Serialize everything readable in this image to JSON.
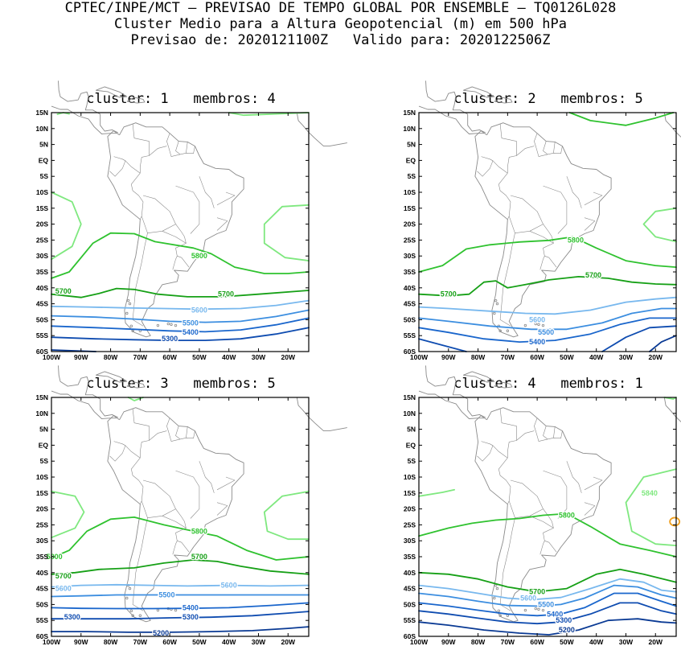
{
  "header": {
    "line1": "CPTEC/INPE/MCT – PREVISAO DE TEMPO GLOBAL POR ENSEMBLE – TQ0126L028",
    "line2": "Cluster Medio para a Altura Geopotencial (m) em 500 hPa",
    "line3": "Previsao de: 2020121100Z   Valido para: 2020122506Z"
  },
  "axes": {
    "lat_labels": [
      "15N",
      "10N",
      "5N",
      "EQ",
      "5S",
      "10S",
      "15S",
      "20S",
      "25S",
      "30S",
      "35S",
      "40S",
      "45S",
      "50S",
      "55S",
      "60S"
    ],
    "lon_labels": [
      "100W",
      "90W",
      "80W",
      "70W",
      "60W",
      "50W",
      "40W",
      "30W",
      "20W"
    ]
  },
  "colors": {
    "c5840": "#7fe87f",
    "c5800": "#2fc22f",
    "c5700": "#16a016",
    "c5600": "#78b8ee",
    "c5500": "#3c8ee0",
    "c5400": "#1a66cc",
    "c5300": "#0f4cb0",
    "c5200": "#0a3a94",
    "warm": "#f0a020",
    "coast": "#8a8a8a"
  },
  "panels": [
    {
      "title": "cluster: 1   membros: 4",
      "labels": [
        {
          "text": "5800",
          "x": -50,
          "y": -30,
          "color": "c5800"
        },
        {
          "text": "5700",
          "x": -96,
          "y": -41,
          "color": "c5700"
        },
        {
          "text": "5700",
          "x": -41,
          "y": -42,
          "color": "c5700"
        },
        {
          "text": "5600",
          "x": -50,
          "y": -47,
          "color": "c5600"
        },
        {
          "text": "5500",
          "x": -53,
          "y": -51,
          "color": "c5500"
        },
        {
          "text": "5400",
          "x": -53,
          "y": -54,
          "color": "c5400"
        },
        {
          "text": "5300",
          "x": -60,
          "y": -56,
          "color": "c5300"
        }
      ]
    },
    {
      "title": "cluster: 2   membros: 5",
      "labels": [
        {
          "text": "5800",
          "x": -47,
          "y": -25,
          "color": "c5800"
        },
        {
          "text": "5700",
          "x": -41,
          "y": -36,
          "color": "c5700"
        },
        {
          "text": "5700",
          "x": -90,
          "y": -42,
          "color": "c5700"
        },
        {
          "text": "5600",
          "x": -60,
          "y": -50,
          "color": "c5600"
        },
        {
          "text": "5500",
          "x": -57,
          "y": -54,
          "color": "c5500"
        },
        {
          "text": "5400",
          "x": -60,
          "y": -57,
          "color": "c5400"
        }
      ]
    },
    {
      "title": "cluster: 3   membros: 5",
      "labels": [
        {
          "text": "5800",
          "x": -50,
          "y": -27,
          "color": "c5800"
        },
        {
          "text": "5800",
          "x": -99,
          "y": -35,
          "color": "c5800"
        },
        {
          "text": "5700",
          "x": -50,
          "y": -35,
          "color": "c5700"
        },
        {
          "text": "5700",
          "x": -96,
          "y": -41,
          "color": "c5700"
        },
        {
          "text": "5600",
          "x": -40,
          "y": -44,
          "color": "c5600"
        },
        {
          "text": "5600",
          "x": -96,
          "y": -45,
          "color": "c5600"
        },
        {
          "text": "5500",
          "x": -61,
          "y": -47,
          "color": "c5500"
        },
        {
          "text": "5400",
          "x": -53,
          "y": -51,
          "color": "c5400"
        },
        {
          "text": "5300",
          "x": -93,
          "y": -54,
          "color": "c5300"
        },
        {
          "text": "5300",
          "x": -53,
          "y": -54,
          "color": "c5300"
        },
        {
          "text": "5200",
          "x": -63,
          "y": -59,
          "color": "c5200"
        }
      ]
    },
    {
      "title": "cluster: 4   membros: 1",
      "labels": [
        {
          "text": "5840",
          "x": -22,
          "y": -15,
          "color": "c5840"
        },
        {
          "text": "5800",
          "x": -50,
          "y": -22,
          "color": "c5800"
        },
        {
          "text": "5700",
          "x": -60,
          "y": -46,
          "color": "c5700"
        },
        {
          "text": "5600",
          "x": -63,
          "y": -48,
          "color": "c5600"
        },
        {
          "text": "5500",
          "x": -57,
          "y": -50,
          "color": "c5500"
        },
        {
          "text": "5400",
          "x": -54,
          "y": -53,
          "color": "c5400"
        },
        {
          "text": "5300",
          "x": -51,
          "y": -55,
          "color": "c5300"
        },
        {
          "text": "5200",
          "x": -50,
          "y": -58,
          "color": "c5200"
        }
      ]
    }
  ]
}
